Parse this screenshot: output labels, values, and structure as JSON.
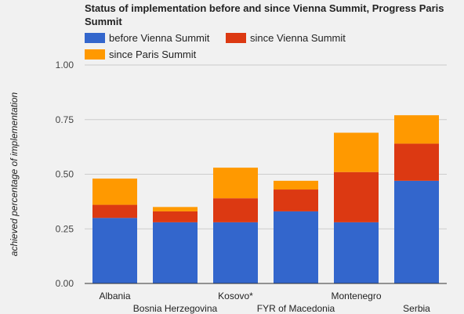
{
  "chart_data": {
    "type": "bar",
    "stacked": true,
    "title": "Status of implementation before and since Vienna Summit, Progress Paris Summit",
    "title_lines": [
      "Status of implementation before and since Vienna Summit, Progress Paris",
      "Summit"
    ],
    "xlabel": "",
    "ylabel": "achieved percentage of implementation",
    "ylim": [
      0,
      1.0
    ],
    "yticks": [
      "0.00",
      "0.25",
      "0.50",
      "0.75",
      "1.00"
    ],
    "ytick_values": [
      0,
      0.25,
      0.5,
      0.75,
      1.0
    ],
    "grid": true,
    "legend_position": "top",
    "categories": [
      "Albania",
      "Bosnia Herzegovina",
      "Kosovo*",
      "FYR of Macedonia",
      "Montenegro",
      "Serbia"
    ],
    "series": [
      {
        "name": "before Vienna Summit",
        "color": "#3366cc",
        "values": [
          0.3,
          0.28,
          0.28,
          0.33,
          0.28,
          0.47
        ]
      },
      {
        "name": "since Vienna Summit",
        "color": "#dc3912",
        "values": [
          0.06,
          0.05,
          0.11,
          0.1,
          0.23,
          0.17
        ]
      },
      {
        "name": "since Paris Summit",
        "color": "#ff9900",
        "values": [
          0.12,
          0.02,
          0.14,
          0.04,
          0.18,
          0.13
        ]
      }
    ]
  }
}
